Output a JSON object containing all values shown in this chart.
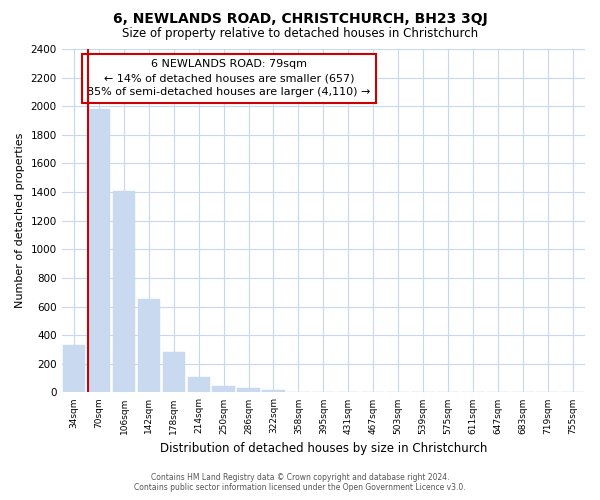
{
  "title": "6, NEWLANDS ROAD, CHRISTCHURCH, BH23 3QJ",
  "subtitle": "Size of property relative to detached houses in Christchurch",
  "xlabel": "Distribution of detached houses by size in Christchurch",
  "ylabel": "Number of detached properties",
  "bar_labels": [
    "34sqm",
    "70sqm",
    "106sqm",
    "142sqm",
    "178sqm",
    "214sqm",
    "250sqm",
    "286sqm",
    "322sqm",
    "358sqm",
    "395sqm",
    "431sqm",
    "467sqm",
    "503sqm",
    "539sqm",
    "575sqm",
    "611sqm",
    "647sqm",
    "683sqm",
    "719sqm",
    "755sqm"
  ],
  "bar_values": [
    330,
    1980,
    1410,
    650,
    280,
    105,
    45,
    30,
    20,
    0,
    0,
    0,
    0,
    0,
    0,
    0,
    0,
    0,
    0,
    0,
    0
  ],
  "bar_color": "#c8d9f0",
  "bar_edge_color": "#a8c4e8",
  "highlight_line_color": "#cc0000",
  "ylim": [
    0,
    2400
  ],
  "yticks": [
    0,
    200,
    400,
    600,
    800,
    1000,
    1200,
    1400,
    1600,
    1800,
    2000,
    2200,
    2400
  ],
  "annotation_title": "6 NEWLANDS ROAD: 79sqm",
  "annotation_line1": "← 14% of detached houses are smaller (657)",
  "annotation_line2": "85% of semi-detached houses are larger (4,110) →",
  "annotation_box_color": "#ffffff",
  "annotation_box_edge": "#cc0000",
  "footer_line1": "Contains HM Land Registry data © Crown copyright and database right 2024.",
  "footer_line2": "Contains public sector information licensed under the Open Government Licence v3.0.",
  "background_color": "#ffffff",
  "grid_color": "#c8d8ec"
}
